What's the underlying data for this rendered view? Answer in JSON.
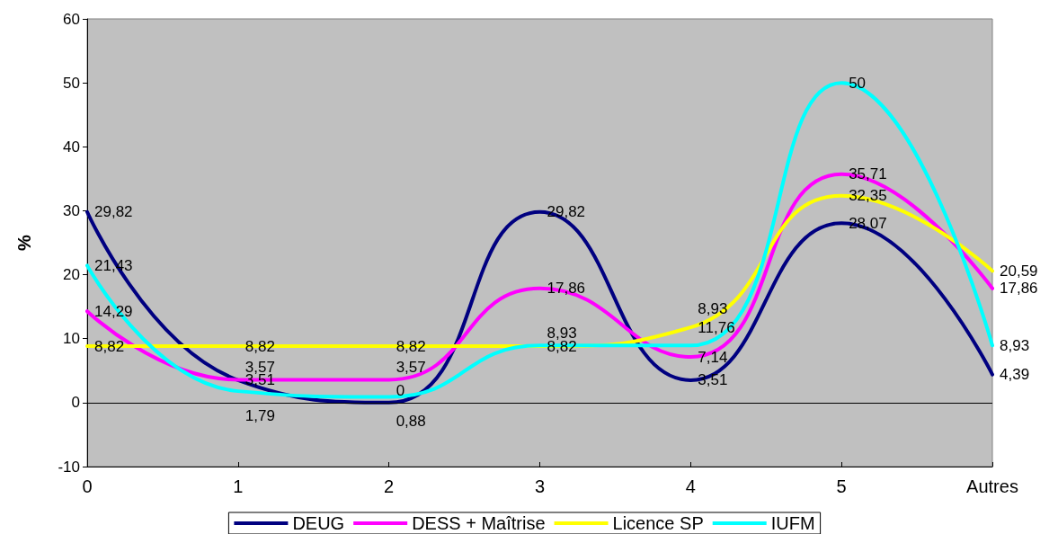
{
  "chart_data": {
    "type": "line",
    "ylabel": "%",
    "categories": [
      "0",
      "1",
      "2",
      "3",
      "4",
      "5",
      "Autres"
    ],
    "series": [
      {
        "name": "DEUG",
        "color": "#000080",
        "values": [
          29.82,
          3.51,
          0,
          29.82,
          3.51,
          28.07,
          4.39
        ],
        "value_labels": [
          "29,82",
          "3,51",
          "0",
          "29,82",
          "3,51",
          "28,07",
          "4,39"
        ]
      },
      {
        "name": "DESS + Maîtrise",
        "color": "#ff00ff",
        "values": [
          14.29,
          3.57,
          3.57,
          17.86,
          7.14,
          35.71,
          17.86
        ],
        "value_labels": [
          "14,29",
          "3,57",
          "3,57",
          "17,86",
          "7,14",
          "35,71",
          "17,86"
        ]
      },
      {
        "name": "Licence SP",
        "color": "#ffff00",
        "values": [
          8.82,
          8.82,
          8.82,
          8.82,
          11.76,
          32.35,
          20.59
        ],
        "value_labels": [
          "8,82",
          "8,82",
          "8,82",
          "8,82",
          "11,76",
          "32,35",
          "20,59"
        ]
      },
      {
        "name": "IUFM",
        "color": "#00ffff",
        "values": [
          21.43,
          1.79,
          0.88,
          8.93,
          8.93,
          50,
          8.93
        ],
        "value_labels": [
          "21,43",
          "1,79",
          "0,88",
          "8,93",
          "8,93",
          "50",
          "8,93"
        ]
      }
    ],
    "ylim": [
      -10,
      60
    ],
    "yticks": [
      -10,
      0,
      10,
      20,
      30,
      40,
      50,
      60
    ],
    "legend": "bottom",
    "marker": "none",
    "line_style": "solid"
  }
}
